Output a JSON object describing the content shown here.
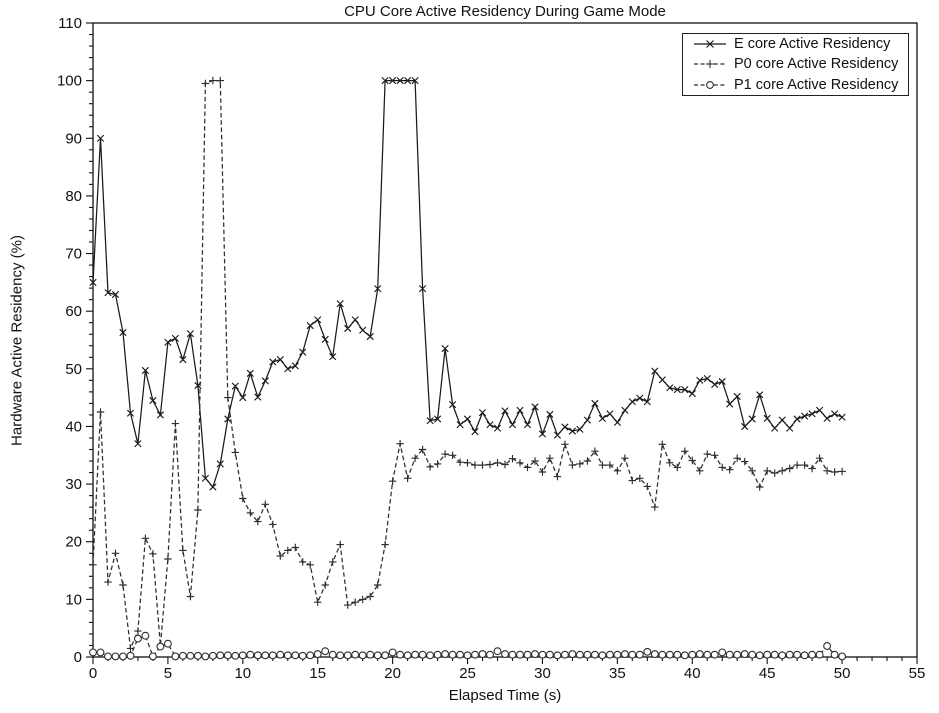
{
  "title": "CPU Core Active Residency During Game Mode",
  "chart_data": {
    "type": "line",
    "title": "CPU Core Active Residency During Game Mode",
    "xlabel": "Elapsed Time (s)",
    "ylabel": "Hardware Active Residency (%)",
    "xlim": [
      0,
      55
    ],
    "ylim": [
      0,
      110
    ],
    "x_ticks": [
      0,
      5,
      10,
      15,
      20,
      25,
      30,
      35,
      40,
      45,
      50,
      55
    ],
    "y_ticks": [
      0,
      10,
      20,
      30,
      40,
      50,
      60,
      70,
      80,
      90,
      100,
      110
    ],
    "x_minor_step": 1,
    "y_minor_step": 2,
    "grid": false,
    "legend_position": "top-right",
    "x_start": 0,
    "x_step": 0.5,
    "x_end": 50,
    "series": [
      {
        "name": "E core Active Residency",
        "marker": "x",
        "line": "solid",
        "color": "#1a1a1a",
        "values": [
          65,
          90,
          63.2,
          62.9,
          56.3,
          42.3,
          37,
          49.7,
          44.5,
          42,
          54.6,
          55.3,
          51.6,
          56.1,
          47.1,
          31,
          29.5,
          33.5,
          41.3,
          47,
          45,
          49.2,
          45.1,
          47.9,
          51.2,
          51.6,
          50,
          50.5,
          52.9,
          57.5,
          58.5,
          55.1,
          52.1,
          61.3,
          57,
          58.5,
          56.7,
          55.6,
          63.9,
          100,
          100,
          100,
          100,
          100,
          63.9,
          41,
          41.3,
          53.5,
          43.8,
          40.3,
          41.3,
          39.1,
          42.4,
          40.3,
          39.7,
          42.7,
          40.3,
          42.8,
          40.3,
          43.4,
          38.7,
          42.1,
          38.5,
          39.9,
          39.2,
          39.5,
          41.1,
          44,
          41.4,
          42.2,
          40.7,
          42.8,
          44.3,
          44.9,
          44.3,
          49.6,
          48.1,
          46.7,
          46.4,
          46.4,
          45.7,
          48,
          48.3,
          47.3,
          47.8,
          43.9,
          45.2,
          40,
          41.3,
          45.5,
          41.4,
          39.7,
          41.1,
          39.7,
          41.3,
          41.8,
          42.2,
          42.8,
          41.4,
          42.2,
          41.6
        ]
      },
      {
        "name": "P0 core Active Residency",
        "marker": "plus",
        "line": "dashed",
        "color": "#2e2e2e",
        "values": [
          16,
          42.5,
          13,
          18,
          12.5,
          1.5,
          4.5,
          20.6,
          17.9,
          2,
          17,
          40.5,
          18.5,
          10.5,
          25.5,
          99.5,
          100,
          100,
          45,
          35.5,
          27.5,
          25,
          23.5,
          26.5,
          23,
          17.5,
          18.5,
          19,
          16.5,
          16,
          9.5,
          12.5,
          16.5,
          19.5,
          9,
          9.5,
          10,
          10.5,
          12.5,
          19.5,
          30.5,
          37,
          31,
          34.5,
          36,
          33,
          33.5,
          35.2,
          35,
          33.8,
          33.7,
          33.3,
          33.3,
          33.4,
          33.7,
          33.4,
          34.4,
          33.7,
          32.9,
          34,
          32.1,
          34.5,
          31.3,
          36.9,
          33.3,
          33.5,
          34,
          35.7,
          33.3,
          33.3,
          32.3,
          34.5,
          30.6,
          31,
          29.6,
          26,
          36.9,
          33.7,
          32.9,
          35.7,
          34.1,
          32.3,
          35.2,
          35,
          32.9,
          32.5,
          34.5,
          33.9,
          32.3,
          29.5,
          32.3,
          31.9,
          32.3,
          32.7,
          33.3,
          33.3,
          32.7,
          34.5,
          32.3,
          32.1,
          32.2
        ]
      },
      {
        "name": "P1 core Active Residency",
        "marker": "circle",
        "line": "dashed",
        "color": "#2e2e2e",
        "values": [
          0.8,
          0.8,
          0.1,
          0.1,
          0.1,
          0.2,
          3.2,
          3.7,
          0.1,
          1.8,
          2.3,
          0.1,
          0.2,
          0.2,
          0.2,
          0.1,
          0.2,
          0.3,
          0.3,
          0.2,
          0.3,
          0.4,
          0.3,
          0.3,
          0.3,
          0.4,
          0.3,
          0.3,
          0.2,
          0.3,
          0.5,
          1.0,
          0.4,
          0.3,
          0.3,
          0.4,
          0.3,
          0.4,
          0.3,
          0.3,
          0.8,
          0.4,
          0.3,
          0.4,
          0.4,
          0.3,
          0.4,
          0.5,
          0.4,
          0.4,
          0.3,
          0.4,
          0.5,
          0.4,
          1.0,
          0.5,
          0.4,
          0.4,
          0.4,
          0.5,
          0.4,
          0.4,
          0.3,
          0.4,
          0.5,
          0.4,
          0.4,
          0.4,
          0.3,
          0.4,
          0.4,
          0.5,
          0.4,
          0.4,
          0.9,
          0.5,
          0.4,
          0.4,
          0.4,
          0.3,
          0.4,
          0.5,
          0.4,
          0.4,
          0.8,
          0.4,
          0.4,
          0.5,
          0.4,
          0.3,
          0.4,
          0.4,
          0.3,
          0.4,
          0.4,
          0.3,
          0.4,
          0.4,
          1.9,
          0.4,
          0.1
        ]
      }
    ]
  }
}
